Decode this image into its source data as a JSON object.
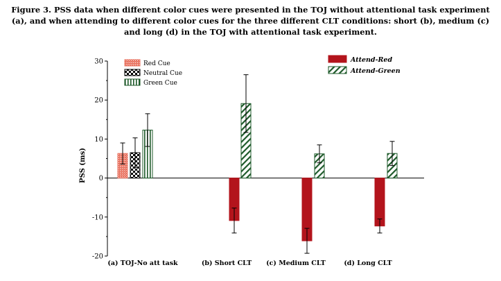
{
  "caption": "Figure 3. PSS data when different color cues were presented in the TOJ without attentional task experiment (a), and when attending to different color cues for the three different CLT conditions: short (b), medium (c) and long (d) in the TOJ with attentional task experiment.",
  "colors": {
    "red_cue": "#e86f5c",
    "attend_red": "#b3141c",
    "green": "#1e5a2a",
    "black": "#000000"
  },
  "chart_data": {
    "type": "bar",
    "ylabel": "PSS (ms)",
    "ylim": [
      -20,
      30
    ],
    "yticks": [
      -20,
      -10,
      0,
      10,
      20,
      30
    ],
    "grid": false,
    "groups": [
      {
        "label": "(a) TOJ-No att task",
        "bars": [
          {
            "series": "Red Cue",
            "value": 6.3,
            "error": 2.7
          },
          {
            "series": "Neutral Cue",
            "value": 6.5,
            "error": 3.8
          },
          {
            "series": "Green Cue",
            "value": 12.3,
            "error": 4.2
          }
        ]
      },
      {
        "label": "(b) Short CLT",
        "bars": [
          {
            "series": "Attend-Red",
            "value": -10.9,
            "error": 3.2
          },
          {
            "series": "Attend-Green",
            "value": 19.1,
            "error": 7.4
          }
        ]
      },
      {
        "label": "(c) Medium CLT",
        "bars": [
          {
            "series": "Attend-Red",
            "value": -16.1,
            "error": 3.2
          },
          {
            "series": "Attend-Green",
            "value": 6.2,
            "error": 2.3
          }
        ]
      },
      {
        "label": "(d) Long CLT",
        "bars": [
          {
            "series": "Attend-Red",
            "value": -12.3,
            "error": 1.8
          },
          {
            "series": "Attend-Green",
            "value": 6.3,
            "error": 3.1
          }
        ]
      }
    ],
    "legend_left": {
      "placement": "top-left",
      "items": [
        "Red Cue",
        "Neutral Cue",
        "Green Cue"
      ]
    },
    "legend_right": {
      "placement": "top-right",
      "items": [
        "Attend-Red",
        "Attend-Green"
      ]
    }
  }
}
